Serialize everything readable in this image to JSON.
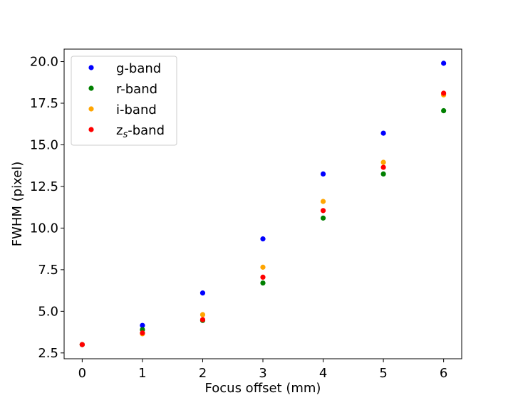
{
  "chart_data": {
    "type": "scatter",
    "title": "",
    "xlabel": "Focus offset (mm)",
    "ylabel": "FWHM (pixel)",
    "xlim": [
      -0.3,
      6.3
    ],
    "ylim": [
      2.15,
      20.75
    ],
    "x_ticks": [
      0,
      1,
      2,
      3,
      4,
      5,
      6
    ],
    "y_ticks": [
      2.5,
      5.0,
      7.5,
      10.0,
      12.5,
      15.0,
      17.5,
      20.0
    ],
    "x_tick_labels": [
      "0",
      "1",
      "2",
      "3",
      "4",
      "5",
      "6"
    ],
    "y_tick_labels": [
      "2.5",
      "5.0",
      "7.5",
      "10.0",
      "12.5",
      "15.0",
      "17.5",
      "20.0"
    ],
    "grid": false,
    "legend_position": "top-left",
    "series": [
      {
        "name": "g-band",
        "label_main": "g-band",
        "label_sub": "",
        "label_suffix": "",
        "color": "#0000ff",
        "x": [
          0,
          1,
          2,
          3,
          4,
          5,
          6
        ],
        "y": [
          3.0,
          4.15,
          6.1,
          9.35,
          13.25,
          15.7,
          19.9
        ]
      },
      {
        "name": "r-band",
        "label_main": "r-band",
        "label_sub": "",
        "label_suffix": "",
        "color": "#008000",
        "x": [
          0,
          1,
          2,
          3,
          4,
          5,
          6
        ],
        "y": [
          3.0,
          3.9,
          4.45,
          6.7,
          10.6,
          13.25,
          17.05
        ]
      },
      {
        "name": "i-band",
        "label_main": "i-band",
        "label_sub": "",
        "label_suffix": "",
        "color": "#ffa500",
        "x": [
          0,
          1,
          2,
          3,
          4,
          5,
          6
        ],
        "y": [
          3.0,
          3.65,
          4.8,
          7.65,
          11.6,
          13.95,
          18.0
        ]
      },
      {
        "name": "zs-band",
        "label_main": "z",
        "label_sub": "s",
        "label_suffix": "-band",
        "color": "#ff0000",
        "x": [
          0,
          1,
          2,
          3,
          4,
          5,
          6
        ],
        "y": [
          3.0,
          3.7,
          4.5,
          7.05,
          11.05,
          13.65,
          18.1
        ]
      }
    ]
  }
}
